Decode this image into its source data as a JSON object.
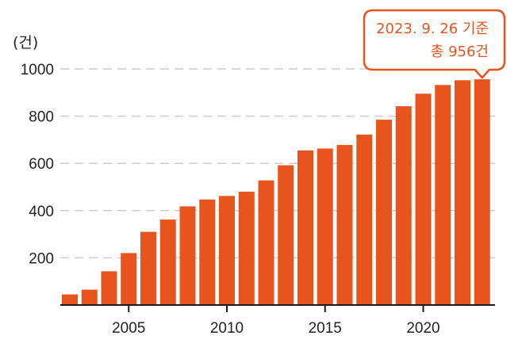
{
  "chart_data": {
    "type": "bar",
    "unit_label": "(건)",
    "categories": [
      "2002",
      "2003",
      "2004",
      "2005",
      "2006",
      "2007",
      "2008",
      "2009",
      "2010",
      "2011",
      "2012",
      "2013",
      "2014",
      "2015",
      "2016",
      "2017",
      "2018",
      "2019",
      "2020",
      "2021",
      "2022",
      "2023"
    ],
    "values": [
      45,
      65,
      143,
      220,
      310,
      362,
      418,
      447,
      462,
      480,
      528,
      592,
      655,
      663,
      678,
      722,
      785,
      842,
      895,
      932,
      952,
      956
    ],
    "ylim": [
      0,
      1000
    ],
    "yticks": [
      "1000",
      "800",
      "600",
      "400",
      "200"
    ],
    "ytick_values": [
      1000,
      800,
      600,
      400,
      200
    ],
    "xticks": [
      "2005",
      "2010",
      "2015",
      "2020"
    ],
    "xtick_values": [
      2005,
      2010,
      2015,
      2020
    ],
    "grid": "dashed horizontal",
    "bar_color": "#e8541e",
    "annotation": {
      "line1": "2023. 9. 26 기준",
      "line2": "총 956건",
      "color": "#e8541e",
      "target": "2023"
    }
  }
}
